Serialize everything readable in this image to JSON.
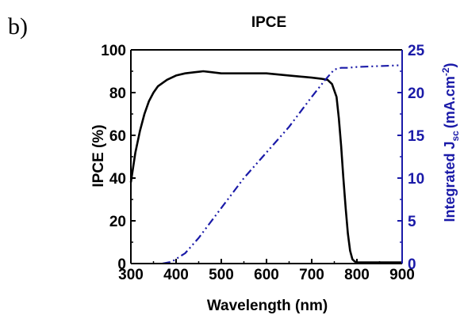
{
  "chart_data": {
    "type": "line",
    "panel_label": "b)",
    "title": "IPCE",
    "xlabel": "Wavelength (nm)",
    "ylabel": "IPCE (%)",
    "ylabel_right": {
      "prefix": "Integrated J",
      "subscript": "sc",
      "middle": "(mA.cm",
      "superscript": "-2",
      "suffix": ")"
    },
    "xlim": [
      300,
      900
    ],
    "ylim": [
      0,
      100
    ],
    "ylim_right": [
      0,
      25
    ],
    "x_ticks": [
      "300",
      "400",
      "500",
      "600",
      "700",
      "800",
      "900"
    ],
    "y_ticks": [
      "0",
      "20",
      "40",
      "60",
      "80",
      "100"
    ],
    "y_ticks_right": [
      "0",
      "5",
      "10",
      "15",
      "20",
      "25"
    ],
    "grid": false,
    "colors": {
      "ipce": "#000000",
      "jsc": "#1a1aa8",
      "right_axis": "#1a1aa8"
    },
    "series": [
      {
        "style": "solid",
        "axis": "left",
        "x": [
          300,
          310,
          320,
          330,
          340,
          350,
          360,
          380,
          400,
          420,
          440,
          460,
          480,
          500,
          550,
          600,
          650,
          700,
          720,
          735,
          745,
          755,
          760,
          765,
          770,
          775,
          780,
          785,
          790,
          795,
          800,
          850,
          880,
          900
        ],
        "y": [
          38,
          52,
          62,
          70,
          76,
          80,
          83,
          86,
          88,
          89,
          89.5,
          90,
          89.5,
          89,
          89,
          89,
          88,
          87,
          86.5,
          86,
          84,
          78,
          68,
          55,
          40,
          26,
          14,
          6,
          2,
          1,
          0.5,
          0.5,
          0.5,
          0.5
        ]
      },
      {
        "style": "dash-dot-dot",
        "axis": "right",
        "x": [
          370,
          390,
          420,
          450,
          500,
          550,
          600,
          650,
          700,
          730,
          750,
          765,
          780,
          800,
          850,
          900
        ],
        "y": [
          0,
          0.2,
          1.2,
          3,
          6.5,
          10,
          13,
          16,
          19.5,
          21.5,
          22.7,
          22.9,
          22.9,
          23.0,
          23.1,
          23.2
        ]
      }
    ]
  }
}
